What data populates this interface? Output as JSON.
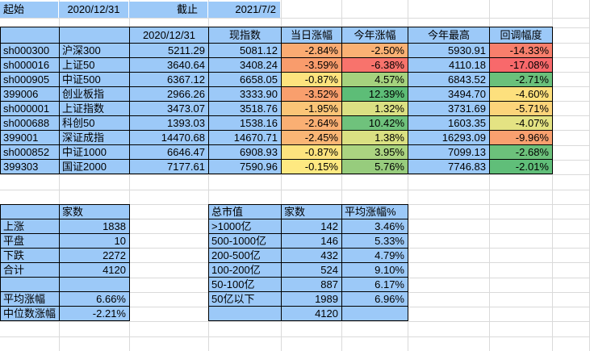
{
  "topbar": {
    "start_label": "起始",
    "start_date": "2020/12/31",
    "end_label": "截止",
    "end_date": "2021/7/2"
  },
  "main": {
    "headers": [
      "",
      "",
      "2020/12/31",
      "现指数",
      "当日涨幅",
      "今年涨幅",
      "今年最高",
      "回调幅度"
    ],
    "rows": [
      {
        "code": "sh000300",
        "name": "沪深300",
        "start": "5211.29",
        "current": "5081.12",
        "day": "-2.84%",
        "day_bg": "#FAAB72",
        "ytd": "-2.50%",
        "ytd_bg": "#FAB174",
        "high": "5930.91",
        "dd": "-14.33%",
        "dd_bg": "#F87F6C"
      },
      {
        "code": "sh000016",
        "name": "上证50",
        "start": "3640.64",
        "current": "3408.24",
        "day": "-3.59%",
        "day_bg": "#F99C6C",
        "ytd": "-6.38%",
        "ytd_bg": "#F8736C",
        "high": "4110.18",
        "dd": "-17.08%",
        "dd_bg": "#F8696B"
      },
      {
        "code": "sh000905",
        "name": "中证500",
        "start": "6367.12",
        "current": "6658.05",
        "day": "-0.87%",
        "day_bg": "#FDE37E",
        "ytd": "4.57%",
        "ytd_bg": "#A5D27E",
        "high": "6843.52",
        "dd": "-2.71%",
        "dd_bg": "#6AC07B"
      },
      {
        "code": "399006",
        "name": "创业板指",
        "start": "2966.26",
        "current": "3333.90",
        "day": "-3.52%",
        "day_bg": "#F99F6D",
        "ytd": "12.39%",
        "ytd_bg": "#5DBD77",
        "high": "3494.70",
        "dd": "-4.60%",
        "dd_bg": "#FDE07D"
      },
      {
        "code": "sh000001",
        "name": "上证指数",
        "start": "3473.07",
        "current": "3518.76",
        "day": "-1.95%",
        "day_bg": "#FBC577",
        "ytd": "1.32%",
        "ytd_bg": "#DBE083",
        "high": "3731.69",
        "dd": "-5.71%",
        "dd_bg": "#FCD47A"
      },
      {
        "code": "sh000688",
        "name": "科创50",
        "start": "1393.03",
        "current": "1538.16",
        "day": "-2.64%",
        "day_bg": "#FAAF73",
        "ytd": "10.42%",
        "ytd_bg": "#6FC27C",
        "high": "1603.35",
        "dd": "-4.07%",
        "dd_bg": "#E4E383"
      },
      {
        "code": "399001",
        "name": "深证成指",
        "start": "14470.68",
        "current": "14670.71",
        "day": "-2.45%",
        "day_bg": "#FAB675",
        "ytd": "1.38%",
        "ytd_bg": "#DAE082",
        "high": "16293.09",
        "dd": "-9.96%",
        "dd_bg": "#F9A06F"
      },
      {
        "code": "sh000852",
        "name": "中证1000",
        "start": "6646.47",
        "current": "6908.93",
        "day": "-0.87%",
        "day_bg": "#FDE37E",
        "ytd": "3.95%",
        "ytd_bg": "#ABD480",
        "high": "7099.13",
        "dd": "-2.68%",
        "dd_bg": "#6CC17B"
      },
      {
        "code": "399303",
        "name": "国证2000",
        "start": "7177.61",
        "current": "7590.96",
        "day": "-0.15%",
        "day_bg": "#FEE981",
        "ytd": "5.76%",
        "ytd_bg": "#97CC7D",
        "high": "7746.83",
        "dd": "-2.01%",
        "dd_bg": "#60BE79"
      }
    ]
  },
  "breadth": {
    "col_header": "家数",
    "rows": [
      {
        "label": "上涨",
        "value": "1838"
      },
      {
        "label": "平盘",
        "value": "10"
      },
      {
        "label": "下跌",
        "value": "2272"
      },
      {
        "label": "合计",
        "value": "4120"
      },
      {
        "label": "",
        "value": ""
      },
      {
        "label": "平均涨幅",
        "value": "6.66%"
      },
      {
        "label": "中位数涨幅",
        "value": "-2.21%"
      }
    ]
  },
  "cap": {
    "headers": [
      "总市值",
      "家数",
      "平均涨幅%"
    ],
    "rows": [
      {
        "range": ">1000亿",
        "count": "142",
        "avg": "3.46%"
      },
      {
        "range": "500-1000亿",
        "count": "146",
        "avg": "5.33%"
      },
      {
        "range": "200-500亿",
        "count": "432",
        "avg": "4.79%"
      },
      {
        "range": "100-200亿",
        "count": "524",
        "avg": "9.10%"
      },
      {
        "range": "50-100亿",
        "count": "887",
        "avg": "6.17%"
      },
      {
        "range": "50亿以下",
        "count": "1989",
        "avg": "6.96%"
      },
      {
        "range": "",
        "count": "4120",
        "avg": ""
      }
    ]
  },
  "colors": {
    "cell_blue": "#9CC9F8",
    "gridline": "#DADADA",
    "scale_red": "#F8696B",
    "scale_yellow": "#FFE984",
    "scale_green": "#63BE7B"
  }
}
